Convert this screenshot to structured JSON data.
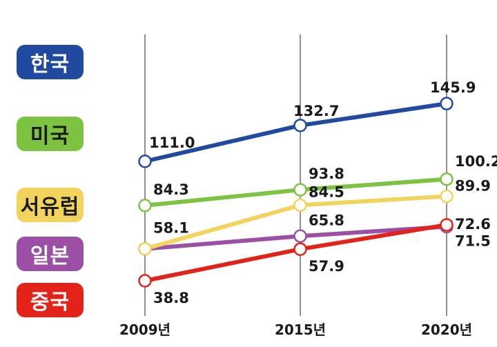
{
  "chart_data": {
    "type": "line",
    "categories": [
      "2009년",
      "2015년",
      "2020년"
    ],
    "ylim": [
      30,
      150
    ],
    "grid": "vertical lines at categories",
    "legend_placement": "left",
    "series": [
      {
        "name": "한국",
        "values": [
          111.0,
          132.7,
          145.9
        ],
        "labels": [
          "111.0",
          "132.7",
          "145.9"
        ],
        "color": "#1f4aa0",
        "pill_text_color": "#ffffff"
      },
      {
        "name": "미국",
        "values": [
          84.3,
          93.8,
          100.2
        ],
        "labels": [
          "84.3",
          "93.8",
          "100.2"
        ],
        "color": "#7cc342",
        "pill_text_color": "#1a1a1a"
      },
      {
        "name": "서유럽",
        "values": [
          58.1,
          84.5,
          89.9
        ],
        "labels": [
          "58.1",
          "84.5",
          "89.9"
        ],
        "color": "#f2d35e",
        "pill_text_color": "#1a1a1a"
      },
      {
        "name": "일본",
        "values": [
          58.1,
          65.8,
          71.5
        ],
        "labels": [
          null,
          "65.8",
          "71.5"
        ],
        "color": "#9b4fa5",
        "pill_text_color": "#ffffff"
      },
      {
        "name": "중국",
        "values": [
          38.8,
          57.9,
          72.6
        ],
        "labels": [
          "38.8",
          "57.9",
          "72.6"
        ],
        "color": "#e2231a",
        "pill_text_color": "#ffffff"
      }
    ]
  }
}
